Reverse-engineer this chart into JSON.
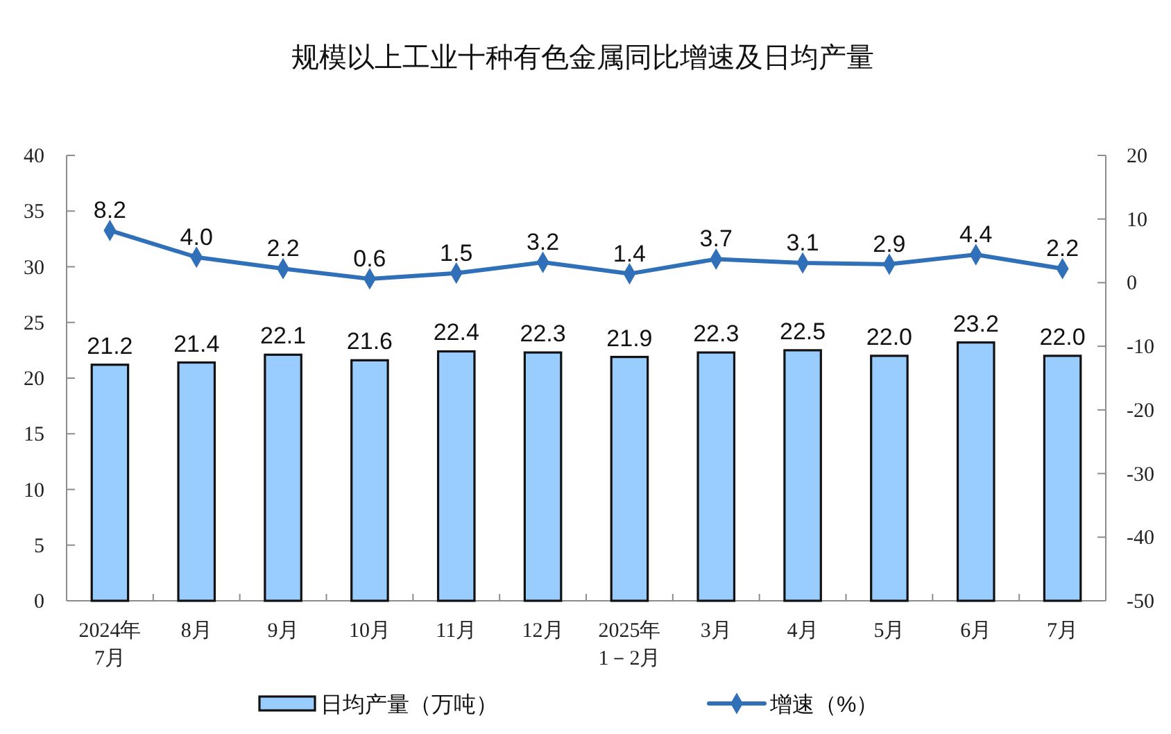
{
  "chart_data": {
    "type": "bar",
    "title": "规模以上工业十种有色金属同比增速及日均产量",
    "categories": [
      "2024年\n7月",
      "8月",
      "9月",
      "10月",
      "11月",
      "12月",
      "2025年\n1－2月",
      "3月",
      "4月",
      "5月",
      "6月",
      "7月"
    ],
    "series": [
      {
        "name": "日均产量（万吨）",
        "color": "#99ccff",
        "values": [
          21.2,
          21.4,
          22.1,
          21.6,
          22.4,
          22.3,
          21.9,
          22.3,
          22.5,
          22.0,
          23.2,
          22.0
        ],
        "value_labels": [
          "21.2",
          "21.4",
          "22.1",
          "21.6",
          "22.4",
          "22.3",
          "21.9",
          "22.3",
          "22.5",
          "22.0",
          "23.2",
          "22.0"
        ]
      },
      {
        "name": "增速（%）",
        "type": "line",
        "axis": "y2",
        "color": "#3070b8",
        "marker": "diamond",
        "values": [
          8.2,
          4.0,
          2.2,
          0.6,
          1.5,
          3.2,
          1.4,
          3.7,
          3.1,
          2.9,
          4.4,
          2.2
        ],
        "value_labels": [
          "8.2",
          "4.0",
          "2.2",
          "0.6",
          "1.5",
          "3.2",
          "1.4",
          "3.7",
          "3.1",
          "2.9",
          "4.4",
          "2.2"
        ]
      }
    ],
    "ylim": [
      0,
      40
    ],
    "yticks": [
      0,
      5,
      10,
      15,
      20,
      25,
      30,
      35,
      40
    ],
    "y2lim": [
      -50,
      20
    ],
    "y2ticks": [
      -50,
      -40,
      -30,
      -20,
      -10,
      0,
      10,
      20
    ],
    "legend": "bottom"
  }
}
